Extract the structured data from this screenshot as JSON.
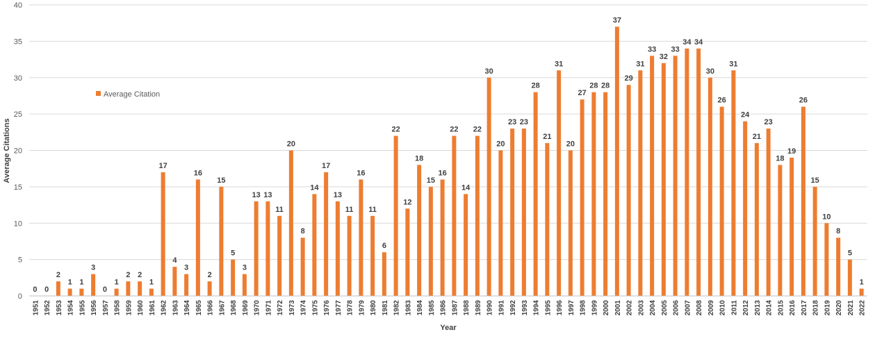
{
  "chart_data": {
    "type": "bar",
    "title": "",
    "xlabel": "Year",
    "ylabel": "Average Citations",
    "ylim": [
      0,
      40
    ],
    "yticks": [
      0,
      5,
      10,
      15,
      20,
      25,
      30,
      35,
      40
    ],
    "grid": true,
    "legend": {
      "position": "left",
      "entries": [
        "Average Citation"
      ]
    },
    "colors": {
      "bar": "#ED7D31"
    },
    "categories": [
      "1951",
      "1952",
      "1953",
      "1954",
      "1955",
      "1956",
      "1957",
      "1958",
      "1959",
      "1960",
      "1961",
      "1962",
      "1963",
      "1964",
      "1965",
      "1966",
      "1967",
      "1968",
      "1969",
      "1970",
      "1971",
      "1972",
      "1973",
      "1974",
      "1975",
      "1976",
      "1977",
      "1978",
      "1979",
      "1980",
      "1981",
      "1982",
      "1983",
      "1984",
      "1985",
      "1986",
      "1987",
      "1988",
      "1989",
      "1990",
      "1991",
      "1992",
      "1993",
      "1994",
      "1995",
      "1996",
      "1997",
      "1998",
      "1999",
      "2000",
      "2001",
      "2002",
      "2003",
      "2004",
      "2005",
      "2006",
      "2007",
      "2008",
      "2009",
      "2010",
      "2011",
      "2012",
      "2013",
      "2014",
      "2015",
      "2016",
      "2017",
      "2018",
      "2019",
      "2020",
      "2021",
      "2022"
    ],
    "series": [
      {
        "name": "Average Citation",
        "values": [
          0,
          0,
          2,
          1,
          1,
          3,
          0,
          1,
          2,
          2,
          1,
          17,
          4,
          3,
          16,
          2,
          15,
          5,
          3,
          13,
          13,
          11,
          20,
          8,
          14,
          17,
          13,
          11,
          16,
          11,
          6,
          22,
          12,
          18,
          15,
          16,
          22,
          14,
          22,
          30,
          20,
          23,
          23,
          28,
          21,
          31,
          20,
          27,
          28,
          28,
          37,
          29,
          31,
          33,
          32,
          33,
          34,
          34,
          30,
          26,
          31,
          24,
          21,
          23,
          18,
          19,
          26,
          15,
          10,
          8,
          5,
          1
        ]
      }
    ]
  }
}
